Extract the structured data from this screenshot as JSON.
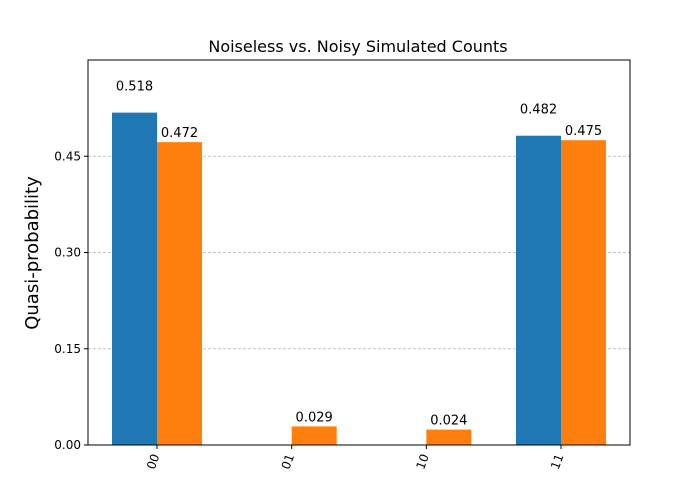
{
  "chart_data": {
    "type": "bar",
    "title": "Noiseless vs. Noisy Simulated Counts",
    "xlabel": "",
    "ylabel": "Quasi-probability",
    "categories": [
      "00",
      "01",
      "10",
      "11"
    ],
    "series": [
      {
        "color": "#1f77b4",
        "values": [
          0.518,
          0.0,
          0.0,
          0.482
        ],
        "labels": [
          "0.518",
          "",
          "",
          "0.482"
        ]
      },
      {
        "color": "#ff7f0e",
        "values": [
          0.472,
          0.029,
          0.024,
          0.475
        ],
        "labels": [
          "0.472",
          "0.029",
          "0.024",
          "0.475"
        ]
      }
    ],
    "ylim": [
      0,
      0.6
    ],
    "yticks": [
      0.0,
      0.15,
      0.3,
      0.45
    ],
    "ytick_labels": [
      "0.00",
      "0.15",
      "0.30",
      "0.45"
    ],
    "xtick_rotation": 70,
    "grid": "horizontal dashed",
    "legend": "none"
  }
}
